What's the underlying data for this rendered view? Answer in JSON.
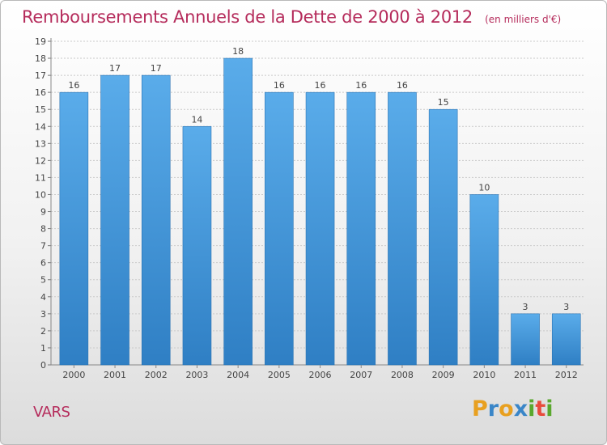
{
  "title": "Remboursements Annuels de la Dette de 2000 à 2012",
  "unit": "(en milliers d'€)",
  "commune": "VARS",
  "brand": {
    "letters": [
      "P",
      "r",
      "o",
      "x",
      "i",
      "t",
      "i"
    ],
    "colors": [
      "#e8a020",
      "#3a86c8",
      "#e8a020",
      "#3a86c8",
      "#5aa82e",
      "#e84b3c",
      "#5aa82e"
    ]
  },
  "colors": {
    "title": "#b52b5b",
    "bar_top": "#5aacea",
    "bar_bottom": "#2f7fc4",
    "grid": "#c9c9c9",
    "axis_text": "#444444"
  },
  "chart_data": {
    "type": "bar",
    "categories": [
      "2000",
      "2001",
      "2002",
      "2003",
      "2004",
      "2005",
      "2006",
      "2007",
      "2008",
      "2009",
      "2010",
      "2011",
      "2012"
    ],
    "values": [
      16,
      17,
      17,
      14,
      18,
      16,
      16,
      16,
      16,
      15,
      10,
      3,
      3
    ],
    "ylim": [
      0,
      19
    ],
    "yticks": [
      0,
      1,
      2,
      3,
      4,
      5,
      6,
      7,
      8,
      9,
      10,
      11,
      12,
      13,
      14,
      15,
      16,
      17,
      18,
      19
    ],
    "grid": true,
    "data_labels": true
  }
}
